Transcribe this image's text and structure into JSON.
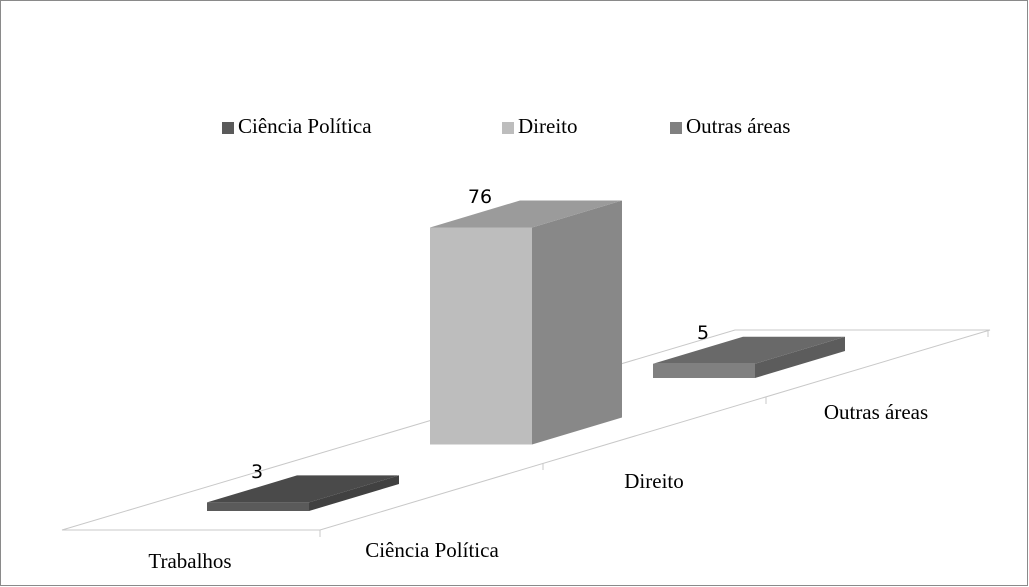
{
  "chart_data": {
    "type": "bar3d",
    "categories": [
      "Trabalhos"
    ],
    "series": [
      {
        "name": "Ciência Política",
        "color": "#5a5a5a",
        "values": [
          3
        ]
      },
      {
        "name": "Direito",
        "color": "#bdbdbd",
        "values": [
          76
        ]
      },
      {
        "name": "Outras áreas",
        "color": "#808080",
        "values": [
          5
        ]
      }
    ],
    "legend": "top"
  }
}
